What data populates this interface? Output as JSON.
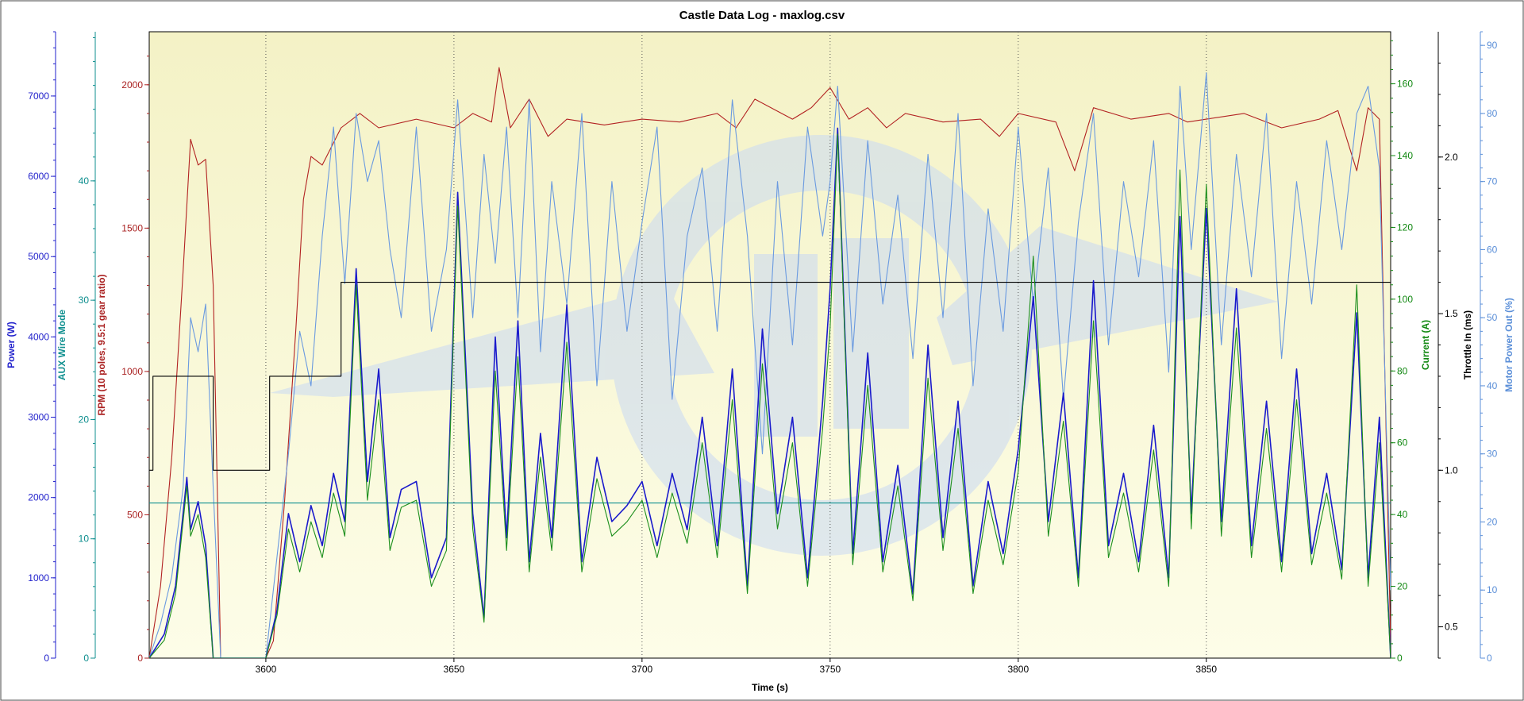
{
  "chart_data": {
    "type": "line",
    "title": "Castle Data Log - maxlog.csv",
    "xlabel": "Time (s)",
    "xlim": [
      3569,
      3899
    ],
    "x_ticks": [
      3600,
      3650,
      3700,
      3750,
      3800,
      3850
    ],
    "grid": "vertical dotted at x ticks",
    "background": "yellow gradient with faded blue logo watermark",
    "axes": [
      {
        "id": "power",
        "label": "Power (W)",
        "side": "left",
        "color": "#2222cc",
        "ylim": [
          0,
          7800
        ],
        "ticks": [
          0,
          1000,
          2000,
          3000,
          4000,
          5000,
          6000,
          7000
        ]
      },
      {
        "id": "aux",
        "label": "AUX Wire Mode",
        "side": "left",
        "color": "#0f8f8f",
        "ylim": [
          0,
          52.5
        ],
        "ticks": [
          0,
          10,
          20,
          30,
          40
        ]
      },
      {
        "id": "rpm",
        "label": "RPM (10 poles, 9.5:1 gear ratio)",
        "side": "left",
        "color": "#aa2222",
        "ylim": [
          0,
          2185
        ],
        "ticks": [
          0,
          500,
          1000,
          1500,
          2000
        ]
      },
      {
        "id": "current",
        "label": "Current (A)",
        "side": "right",
        "color": "#118811",
        "ylim": [
          0,
          174.5
        ],
        "ticks": [
          0,
          20,
          40,
          60,
          80,
          100,
          120,
          140,
          160
        ]
      },
      {
        "id": "throttle",
        "label": "Throttle In (ms)",
        "side": "right",
        "color": "#000000",
        "ylim": [
          0.4,
          2.4
        ],
        "ticks": [
          0.5,
          1.0,
          1.5,
          2.0
        ],
        "tick_labels": [
          "0.5",
          "1.0",
          "1.5",
          "2.0"
        ]
      },
      {
        "id": "motor",
        "label": "Motor Power Out (%)",
        "side": "right",
        "color": "#5b8fd8",
        "ylim": [
          0,
          92
        ],
        "ticks": [
          0,
          10,
          20,
          30,
          40,
          50,
          60,
          70,
          80,
          90
        ]
      }
    ],
    "series": [
      {
        "name": "RPM (10 poles, 9.5:1 gear ratio)",
        "axis": "rpm",
        "color": "#b22222",
        "x": [
          3569,
          3572,
          3575,
          3578,
          3580,
          3582,
          3584,
          3586,
          3588,
          3590,
          3600,
          3602,
          3605,
          3608,
          3610,
          3612,
          3615,
          3620,
          3625,
          3630,
          3640,
          3650,
          3655,
          3660,
          3662,
          3665,
          3670,
          3675,
          3680,
          3690,
          3700,
          3710,
          3720,
          3725,
          3730,
          3740,
          3745,
          3750,
          3755,
          3760,
          3765,
          3770,
          3780,
          3790,
          3795,
          3800,
          3810,
          3815,
          3820,
          3830,
          3840,
          3845,
          3850,
          3860,
          3870,
          3880,
          3885,
          3890,
          3893,
          3896,
          3899
        ],
        "y": [
          0,
          250,
          700,
          1350,
          1810,
          1720,
          1740,
          1300,
          0,
          0,
          0,
          60,
          550,
          1150,
          1600,
          1750,
          1720,
          1850,
          1900,
          1850,
          1880,
          1850,
          1900,
          1870,
          2060,
          1850,
          1950,
          1820,
          1880,
          1860,
          1880,
          1870,
          1900,
          1850,
          1950,
          1880,
          1920,
          1990,
          1880,
          1920,
          1850,
          1900,
          1870,
          1880,
          1820,
          1900,
          1870,
          1700,
          1920,
          1880,
          1900,
          1870,
          1880,
          1900,
          1850,
          1880,
          1910,
          1700,
          1920,
          1880,
          50
        ]
      },
      {
        "name": "Motor Power Out (%)",
        "axis": "motor",
        "color": "#6a9ae0",
        "x": [
          3569,
          3572,
          3575,
          3578,
          3580,
          3582,
          3584,
          3586,
          3588,
          3590,
          3600,
          3603,
          3606,
          3609,
          3612,
          3615,
          3618,
          3621,
          3624,
          3627,
          3630,
          3633,
          3636,
          3640,
          3644,
          3648,
          3651,
          3655,
          3658,
          3661,
          3664,
          3667,
          3670,
          3673,
          3676,
          3680,
          3684,
          3688,
          3692,
          3696,
          3700,
          3704,
          3708,
          3712,
          3716,
          3720,
          3724,
          3728,
          3732,
          3736,
          3740,
          3744,
          3748,
          3750,
          3752,
          3756,
          3760,
          3764,
          3768,
          3772,
          3776,
          3780,
          3784,
          3788,
          3792,
          3796,
          3800,
          3804,
          3808,
          3812,
          3816,
          3820,
          3824,
          3828,
          3832,
          3836,
          3840,
          3843,
          3846,
          3850,
          3854,
          3858,
          3862,
          3866,
          3870,
          3874,
          3878,
          3882,
          3886,
          3890,
          3893,
          3896,
          3899
        ],
        "y": [
          0,
          5,
          12,
          25,
          50,
          45,
          52,
          25,
          0,
          0,
          0,
          15,
          30,
          48,
          40,
          62,
          78,
          55,
          80,
          70,
          76,
          60,
          50,
          78,
          48,
          60,
          82,
          50,
          74,
          58,
          78,
          50,
          82,
          45,
          70,
          52,
          80,
          40,
          70,
          48,
          64,
          78,
          38,
          62,
          72,
          48,
          82,
          62,
          30,
          70,
          46,
          78,
          62,
          70,
          84,
          45,
          76,
          52,
          68,
          44,
          74,
          50,
          80,
          40,
          66,
          48,
          78,
          52,
          72,
          38,
          64,
          80,
          46,
          70,
          56,
          76,
          42,
          84,
          60,
          86,
          46,
          74,
          56,
          80,
          44,
          70,
          52,
          76,
          60,
          80,
          84,
          72,
          10
        ]
      },
      {
        "name": "Throttle In (ms)",
        "axis": "throttle",
        "color": "#000000",
        "step": true,
        "x": [
          3569,
          3570,
          3583,
          3586,
          3601,
          3616,
          3620,
          3899
        ],
        "y": [
          1.0,
          1.3,
          1.3,
          1.0,
          1.3,
          1.3,
          1.6,
          1.6
        ]
      },
      {
        "name": "AUX Wire Mode",
        "axis": "aux",
        "color": "#0f8f8f",
        "x": [
          3569,
          3899
        ],
        "y": [
          13,
          13
        ]
      },
      {
        "name": "Power (W)",
        "axis": "power",
        "color": "#1a1acc",
        "x": [
          3569,
          3573,
          3576,
          3579,
          3580,
          3582,
          3584,
          3586,
          3588,
          3600,
          3603,
          3606,
          3609,
          3612,
          3615,
          3618,
          3621,
          3624,
          3627,
          3630,
          3633,
          3636,
          3640,
          3644,
          3648,
          3651,
          3655,
          3658,
          3661,
          3664,
          3667,
          3670,
          3673,
          3676,
          3680,
          3684,
          3688,
          3692,
          3696,
          3700,
          3704,
          3708,
          3712,
          3716,
          3720,
          3724,
          3728,
          3732,
          3736,
          3740,
          3744,
          3748,
          3750,
          3752,
          3756,
          3760,
          3764,
          3768,
          3772,
          3776,
          3780,
          3784,
          3788,
          3792,
          3796,
          3800,
          3804,
          3808,
          3812,
          3816,
          3820,
          3824,
          3828,
          3832,
          3836,
          3840,
          3843,
          3846,
          3850,
          3854,
          3858,
          3862,
          3866,
          3870,
          3874,
          3878,
          3882,
          3886,
          3890,
          3893,
          3896,
          3899
        ],
        "y": [
          0,
          300,
          900,
          2250,
          1600,
          1950,
          1400,
          0,
          0,
          0,
          600,
          1800,
          1200,
          1900,
          1400,
          2300,
          1700,
          4850,
          2200,
          3600,
          1500,
          2100,
          2200,
          1000,
          1500,
          5800,
          1800,
          500,
          4000,
          1500,
          4200,
          1200,
          2800,
          1500,
          4400,
          1200,
          2500,
          1700,
          1900,
          2200,
          1400,
          2300,
          1600,
          3000,
          1400,
          3600,
          900,
          4100,
          1800,
          3000,
          1000,
          3200,
          4600,
          6600,
          1300,
          3800,
          1200,
          2400,
          800,
          3900,
          1500,
          3200,
          900,
          2200,
          1300,
          2600,
          4500,
          1700,
          3300,
          1000,
          4700,
          1400,
          2300,
          1200,
          2900,
          1000,
          5500,
          1800,
          5600,
          1700,
          4600,
          1400,
          3200,
          1200,
          3600,
          1300,
          2300,
          1100,
          4300,
          1000,
          3000,
          0
        ]
      },
      {
        "name": "Current (A)",
        "axis": "current",
        "color": "#1d8f1d",
        "x": [
          3569,
          3573,
          3576,
          3579,
          3580,
          3582,
          3584,
          3586,
          3588,
          3600,
          3603,
          3606,
          3609,
          3612,
          3615,
          3618,
          3621,
          3624,
          3627,
          3630,
          3633,
          3636,
          3640,
          3644,
          3648,
          3651,
          3655,
          3658,
          3661,
          3664,
          3667,
          3670,
          3673,
          3676,
          3680,
          3684,
          3688,
          3692,
          3696,
          3700,
          3704,
          3708,
          3712,
          3716,
          3720,
          3724,
          3728,
          3732,
          3736,
          3740,
          3744,
          3748,
          3750,
          3752,
          3756,
          3760,
          3764,
          3768,
          3772,
          3776,
          3780,
          3784,
          3788,
          3792,
          3796,
          3800,
          3804,
          3808,
          3812,
          3816,
          3820,
          3824,
          3828,
          3832,
          3836,
          3840,
          3843,
          3846,
          3850,
          3854,
          3858,
          3862,
          3866,
          3870,
          3874,
          3878,
          3882,
          3886,
          3890,
          3893,
          3896,
          3899
        ],
        "y": [
          0,
          5,
          18,
          48,
          34,
          40,
          28,
          0,
          0,
          0,
          12,
          36,
          24,
          38,
          28,
          46,
          34,
          104,
          44,
          72,
          30,
          42,
          44,
          20,
          30,
          126,
          36,
          10,
          80,
          30,
          84,
          24,
          56,
          30,
          88,
          24,
          50,
          34,
          38,
          44,
          28,
          46,
          32,
          60,
          28,
          72,
          18,
          82,
          36,
          60,
          20,
          64,
          92,
          146,
          26,
          76,
          24,
          48,
          16,
          78,
          30,
          64,
          18,
          44,
          26,
          52,
          112,
          34,
          66,
          20,
          94,
          28,
          46,
          24,
          58,
          20,
          136,
          36,
          132,
          34,
          92,
          28,
          64,
          24,
          72,
          26,
          46,
          22,
          104,
          20,
          60,
          0
        ]
      }
    ]
  }
}
